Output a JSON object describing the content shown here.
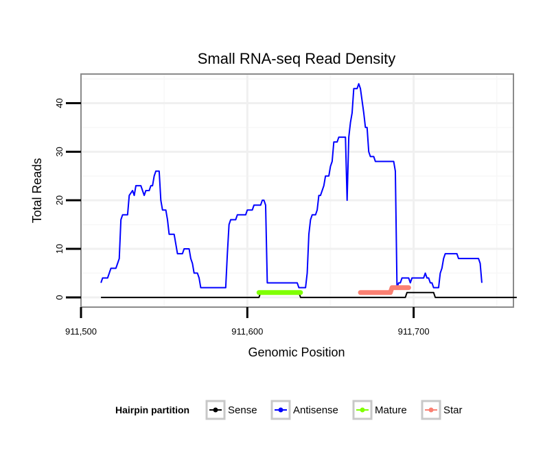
{
  "chart_data": {
    "type": "line",
    "title": "Small RNA-seq Read Density",
    "xlabel": "Genomic Position",
    "ylabel": "Total Reads",
    "xlim": [
      911500,
      911760
    ],
    "ylim": [
      -2,
      46
    ],
    "x_ticks": [
      911500,
      911600,
      911700
    ],
    "x_tick_labels": [
      "911,500",
      "911,600",
      "911,700"
    ],
    "y_ticks": [
      0,
      10,
      20,
      30,
      40
    ],
    "y_tick_labels": [
      "0",
      "10",
      "20",
      "30",
      "40"
    ],
    "grid": true,
    "legend": {
      "title": "Hairpin partition",
      "position": "bottom",
      "entries": [
        "Sense",
        "Antisense",
        "Mature",
        "Star"
      ]
    },
    "series": [
      {
        "name": "Sense",
        "color": "#000000",
        "points": [
          [
            911512,
            0
          ],
          [
            911607,
            0
          ],
          [
            911608,
            1
          ],
          [
            911631,
            1
          ],
          [
            911632,
            0
          ],
          [
            911695,
            0
          ],
          [
            911696,
            1
          ],
          [
            911712,
            1
          ],
          [
            911713,
            0
          ],
          [
            911762,
            0
          ]
        ]
      },
      {
        "name": "Antisense",
        "color": "#0000ff",
        "points": [
          [
            911512,
            3
          ],
          [
            911513,
            4
          ],
          [
            911516,
            4
          ],
          [
            911517,
            5
          ],
          [
            911518,
            6
          ],
          [
            911521,
            6
          ],
          [
            911522,
            7
          ],
          [
            911523,
            8
          ],
          [
            911524,
            16
          ],
          [
            911525,
            17
          ],
          [
            911528,
            17
          ],
          [
            911529,
            21
          ],
          [
            911531,
            22
          ],
          [
            911532,
            21
          ],
          [
            911533,
            23
          ],
          [
            911536,
            23
          ],
          [
            911537,
            22
          ],
          [
            911538,
            21
          ],
          [
            911539,
            22
          ],
          [
            911541,
            22
          ],
          [
            911542,
            23
          ],
          [
            911543,
            23
          ],
          [
            911544,
            25
          ],
          [
            911545,
            26
          ],
          [
            911547,
            26
          ],
          [
            911548,
            20
          ],
          [
            911549,
            18
          ],
          [
            911551,
            18
          ],
          [
            911552,
            16
          ],
          [
            911553,
            13
          ],
          [
            911556,
            13
          ],
          [
            911557,
            11
          ],
          [
            911558,
            9
          ],
          [
            911561,
            9
          ],
          [
            911562,
            10
          ],
          [
            911565,
            10
          ],
          [
            911566,
            8
          ],
          [
            911567,
            7
          ],
          [
            911568,
            5
          ],
          [
            911570,
            5
          ],
          [
            911571,
            4
          ],
          [
            911572,
            2
          ],
          [
            911587,
            2
          ],
          [
            911588,
            9
          ],
          [
            911589,
            15
          ],
          [
            911590,
            16
          ],
          [
            911593,
            16
          ],
          [
            911594,
            17
          ],
          [
            911599,
            17
          ],
          [
            911600,
            18
          ],
          [
            911603,
            18
          ],
          [
            911604,
            19
          ],
          [
            911608,
            19
          ],
          [
            911609,
            20
          ],
          [
            911610,
            20
          ],
          [
            911611,
            19
          ],
          [
            911612,
            3
          ],
          [
            911630,
            3
          ],
          [
            911631,
            2
          ],
          [
            911635,
            2
          ],
          [
            911636,
            5
          ],
          [
            911637,
            13
          ],
          [
            911638,
            16
          ],
          [
            911639,
            17
          ],
          [
            911641,
            17
          ],
          [
            911642,
            18
          ],
          [
            911643,
            21
          ],
          [
            911644,
            21
          ],
          [
            911645,
            22
          ],
          [
            911646,
            23
          ],
          [
            911647,
            25
          ],
          [
            911649,
            25
          ],
          [
            911650,
            27
          ],
          [
            911651,
            28
          ],
          [
            911652,
            32
          ],
          [
            911654,
            32
          ],
          [
            911655,
            33
          ],
          [
            911659,
            33
          ],
          [
            911660,
            20
          ],
          [
            911661,
            33
          ],
          [
            911662,
            36
          ],
          [
            911663,
            38
          ],
          [
            911664,
            43
          ],
          [
            911666,
            43
          ],
          [
            911667,
            44
          ],
          [
            911668,
            43
          ],
          [
            911670,
            38
          ],
          [
            911671,
            35
          ],
          [
            911672,
            35
          ],
          [
            911673,
            30
          ],
          [
            911674,
            29
          ],
          [
            911676,
            29
          ],
          [
            911677,
            28
          ],
          [
            911688,
            28
          ],
          [
            911689,
            26
          ],
          [
            911690,
            2
          ],
          [
            911691,
            3
          ],
          [
            911692,
            3
          ],
          [
            911693,
            4
          ],
          [
            911697,
            4
          ],
          [
            911698,
            3
          ],
          [
            911699,
            4
          ],
          [
            911706,
            4
          ],
          [
            911707,
            5
          ],
          [
            911708,
            4
          ],
          [
            911709,
            4
          ],
          [
            911710,
            3
          ],
          [
            911711,
            3
          ],
          [
            911712,
            2
          ],
          [
            911715,
            2
          ],
          [
            911716,
            5
          ],
          [
            911717,
            6
          ],
          [
            911718,
            8
          ],
          [
            911719,
            9
          ],
          [
            911726,
            9
          ],
          [
            911727,
            8
          ],
          [
            911739,
            8
          ],
          [
            911740,
            7
          ],
          [
            911741,
            3
          ]
        ]
      },
      {
        "name": "Mature",
        "color": "#7fff00",
        "points": [
          [
            911607,
            1
          ],
          [
            911632,
            1
          ]
        ]
      },
      {
        "name": "Star",
        "color": "#fa8072",
        "points": [
          [
            911668,
            1
          ],
          [
            911686,
            1
          ],
          [
            911687,
            2
          ],
          [
            911697,
            2
          ]
        ]
      }
    ]
  }
}
